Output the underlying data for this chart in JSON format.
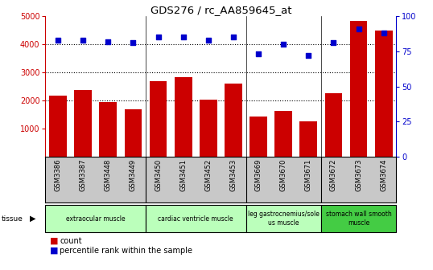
{
  "title": "GDS276 / rc_AA859645_at",
  "samples": [
    "GSM3386",
    "GSM3387",
    "GSM3448",
    "GSM3449",
    "GSM3450",
    "GSM3451",
    "GSM3452",
    "GSM3453",
    "GSM3669",
    "GSM3670",
    "GSM3671",
    "GSM3672",
    "GSM3673",
    "GSM3674"
  ],
  "counts": [
    2180,
    2360,
    1950,
    1680,
    2700,
    2820,
    2020,
    2600,
    1440,
    1620,
    1270,
    2260,
    4820,
    4480
  ],
  "percentiles": [
    83,
    83,
    82,
    81,
    85,
    85,
    83,
    85,
    73,
    80,
    72,
    81,
    91,
    88
  ],
  "ylim_left": [
    0,
    5000
  ],
  "ylim_right": [
    0,
    100
  ],
  "yticks_left": [
    1000,
    2000,
    3000,
    4000,
    5000
  ],
  "yticks_right": [
    0,
    25,
    50,
    75,
    100
  ],
  "bar_color": "#cc0000",
  "dot_color": "#0000cc",
  "bg_color": "#ffffff",
  "plot_bg": "#ffffff",
  "label_bg": "#c8c8c8",
  "tissue_groups": [
    {
      "label": "extraocular muscle",
      "start": 0,
      "end": 4,
      "color": "#bbffbb"
    },
    {
      "label": "cardiac ventricle muscle",
      "start": 4,
      "end": 8,
      "color": "#bbffbb"
    },
    {
      "label": "leg gastrocnemius/sole\nus muscle",
      "start": 8,
      "end": 11,
      "color": "#bbffbb"
    },
    {
      "label": "stomach wall smooth\nmuscle",
      "start": 11,
      "end": 14,
      "color": "#44cc44"
    }
  ],
  "group_boundaries": [
    4,
    8,
    11
  ],
  "legend_count_color": "#cc0000",
  "legend_pct_color": "#0000cc"
}
